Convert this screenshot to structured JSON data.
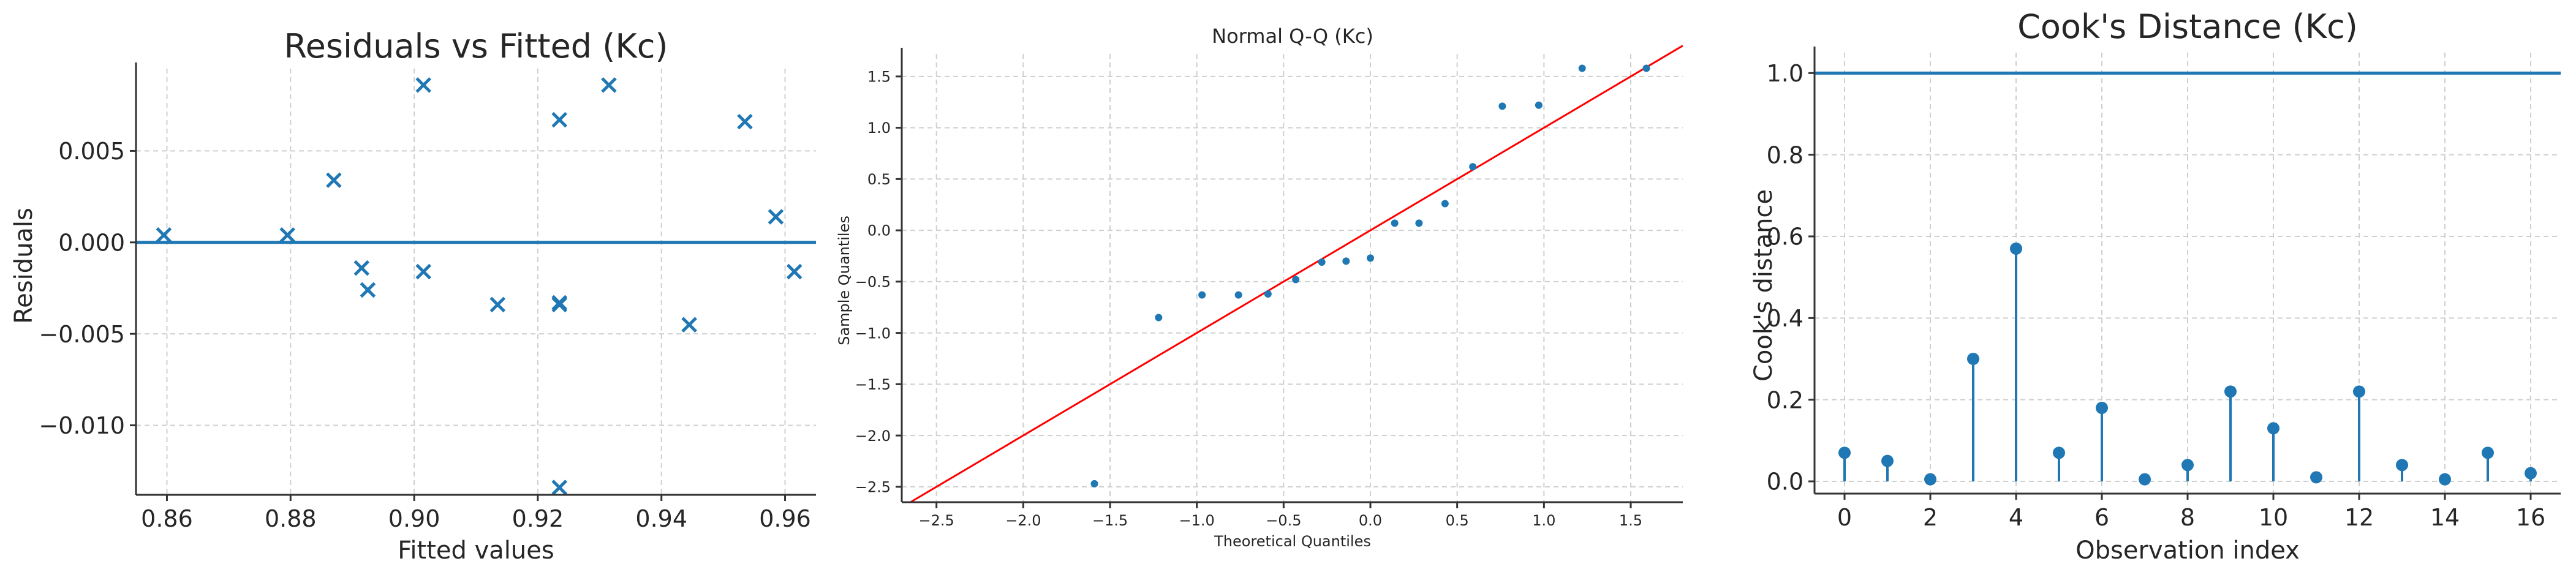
{
  "colors": {
    "series": "#1f77b4",
    "reference": "#ff0000",
    "axis": "#333333",
    "grid": "#cfcfcf"
  },
  "chart_data": [
    {
      "type": "scatter",
      "title": "Residuals vs Fitted (Kc)",
      "xlabel": "Fitted values",
      "ylabel": "Residuals",
      "marker": "x",
      "xlim": [
        0.855,
        0.965
      ],
      "ylim": [
        -0.0138,
        0.0095
      ],
      "xticks": [
        0.86,
        0.88,
        0.9,
        0.92,
        0.94,
        0.96
      ],
      "xtick_labels": [
        "0.86",
        "0.88",
        "0.90",
        "0.92",
        "0.94",
        "0.96"
      ],
      "yticks": [
        -0.01,
        -0.005,
        0.0,
        0.005
      ],
      "ytick_labels": [
        "−0.010",
        "−0.005",
        "0.000",
        "0.005"
      ],
      "hline": 0,
      "points": [
        {
          "x": 0.8595,
          "y": 0.0004
        },
        {
          "x": 0.8795,
          "y": 0.0004
        },
        {
          "x": 0.887,
          "y": 0.0034
        },
        {
          "x": 0.8915,
          "y": -0.0014
        },
        {
          "x": 0.8925,
          "y": -0.0026
        },
        {
          "x": 0.9015,
          "y": 0.0086
        },
        {
          "x": 0.9015,
          "y": -0.0016
        },
        {
          "x": 0.9135,
          "y": -0.0034
        },
        {
          "x": 0.9235,
          "y": 0.0067
        },
        {
          "x": 0.9235,
          "y": -0.0033
        },
        {
          "x": 0.9235,
          "y": -0.0034
        },
        {
          "x": 0.9235,
          "y": -0.0134
        },
        {
          "x": 0.9315,
          "y": 0.0086
        },
        {
          "x": 0.9445,
          "y": -0.0045
        },
        {
          "x": 0.9535,
          "y": 0.0066
        },
        {
          "x": 0.9585,
          "y": 0.0014
        },
        {
          "x": 0.9615,
          "y": -0.0016
        }
      ]
    },
    {
      "type": "scatter",
      "title": "Normal Q-Q (Kc)",
      "xlabel": "Theoretical Quantiles",
      "ylabel": "Sample Quantiles",
      "xlim": [
        -2.7,
        1.8
      ],
      "ylim": [
        -2.65,
        1.72
      ],
      "xticks": [
        -2.5,
        -2.0,
        -1.5,
        -1.0,
        -0.5,
        0.0,
        0.5,
        1.0,
        1.5
      ],
      "xtick_labels": [
        "−2.5",
        "−2.0",
        "−1.5",
        "−1.0",
        "−0.5",
        "0.0",
        "0.5",
        "1.0",
        "1.5"
      ],
      "yticks": [
        -2.5,
        -2.0,
        -1.5,
        -1.0,
        -0.5,
        0.0,
        0.5,
        1.0,
        1.5
      ],
      "ytick_labels": [
        "−2.5",
        "−2.0",
        "−1.5",
        "−1.0",
        "−0.5",
        "0.0",
        "0.5",
        "1.0",
        "1.5"
      ],
      "reference_line": {
        "slope": 1.0,
        "intercept": 0.0
      },
      "points": [
        {
          "x": -1.59,
          "y": -2.47
        },
        {
          "x": -1.22,
          "y": -0.85
        },
        {
          "x": -0.97,
          "y": -0.63
        },
        {
          "x": -0.76,
          "y": -0.63
        },
        {
          "x": -0.59,
          "y": -0.62
        },
        {
          "x": -0.43,
          "y": -0.48
        },
        {
          "x": -0.28,
          "y": -0.31
        },
        {
          "x": -0.14,
          "y": -0.3
        },
        {
          "x": 0.0,
          "y": -0.27
        },
        {
          "x": 0.14,
          "y": 0.07
        },
        {
          "x": 0.28,
          "y": 0.07
        },
        {
          "x": 0.43,
          "y": 0.26
        },
        {
          "x": 0.59,
          "y": 0.62
        },
        {
          "x": 0.76,
          "y": 1.21
        },
        {
          "x": 0.97,
          "y": 1.22
        },
        {
          "x": 1.22,
          "y": 1.58
        },
        {
          "x": 1.59,
          "y": 1.58
        }
      ]
    },
    {
      "type": "stem",
      "title": "Cook's Distance (Kc)",
      "xlabel": "Observation index",
      "ylabel": "Cook's distance",
      "xlim": [
        -0.7,
        16.7
      ],
      "ylim": [
        -0.03,
        1.05
      ],
      "xticks": [
        0,
        2,
        4,
        6,
        8,
        10,
        12,
        14,
        16
      ],
      "xtick_labels": [
        "0",
        "2",
        "4",
        "6",
        "8",
        "10",
        "12",
        "14",
        "16"
      ],
      "yticks": [
        0.0,
        0.2,
        0.4,
        0.6,
        0.8,
        1.0
      ],
      "ytick_labels": [
        "0.0",
        "0.2",
        "0.4",
        "0.6",
        "0.8",
        "1.0"
      ],
      "hline": 1.0,
      "x": [
        0,
        1,
        2,
        3,
        4,
        5,
        6,
        7,
        8,
        9,
        10,
        11,
        12,
        13,
        14,
        15,
        16
      ],
      "values": [
        0.07,
        0.05,
        0.005,
        0.3,
        0.57,
        0.07,
        0.18,
        0.005,
        0.04,
        0.22,
        0.13,
        0.01,
        0.22,
        0.04,
        0.005,
        0.07,
        0.02
      ]
    }
  ]
}
